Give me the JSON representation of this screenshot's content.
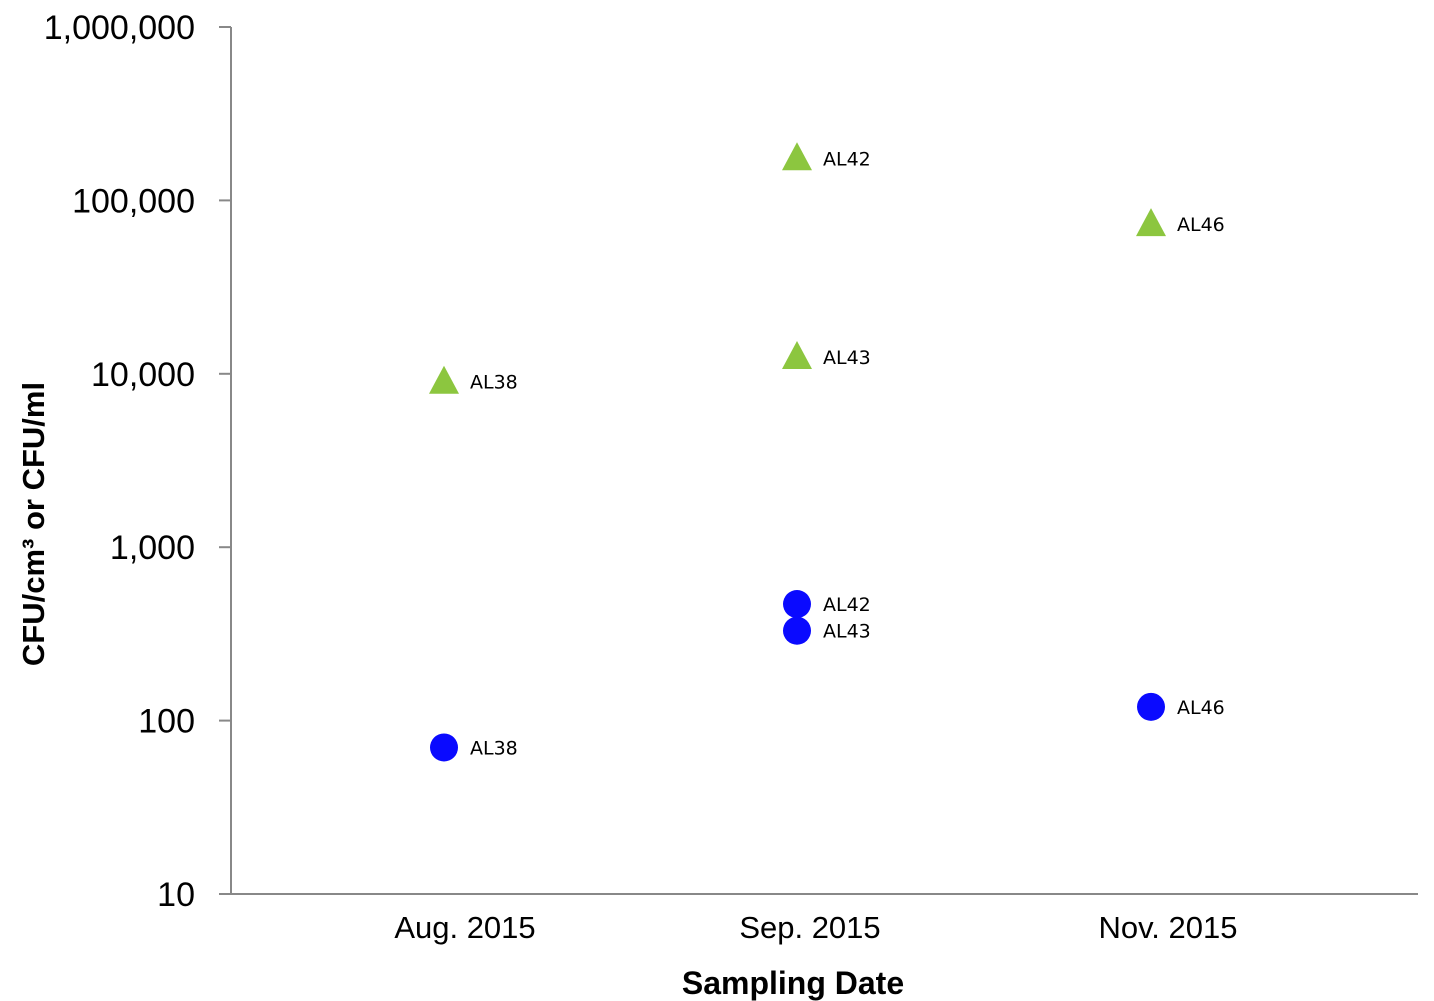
{
  "chart_data": {
    "type": "scatter",
    "xlabel": "Sampling Date",
    "ylabel": "CFU/cm³ or CFU/ml",
    "categories": [
      "Aug. 2015",
      "Sep. 2015",
      "Nov. 2015"
    ],
    "yscale": "log",
    "ylim": [
      10,
      1000000
    ],
    "yticks": [
      10,
      100,
      1000,
      10000,
      100000,
      1000000
    ],
    "ytick_labels": [
      "10",
      "100",
      "1,000",
      "10,000",
      "100,000",
      "1,000,000"
    ],
    "grid": false,
    "series": [
      {
        "marker": "triangle",
        "color": "#8cc63f",
        "points": [
          {
            "x": "Aug. 2015",
            "y": 9000,
            "label": "AL38"
          },
          {
            "x": "Sep. 2015",
            "y": 175000,
            "label": "AL42"
          },
          {
            "x": "Sep. 2015",
            "y": 12500,
            "label": "AL43"
          },
          {
            "x": "Nov. 2015",
            "y": 73000,
            "label": "AL46"
          }
        ]
      },
      {
        "marker": "circle",
        "color": "#0a0aff",
        "points": [
          {
            "x": "Aug. 2015",
            "y": 70,
            "label": "AL38"
          },
          {
            "x": "Sep. 2015",
            "y": 470,
            "label": "AL42"
          },
          {
            "x": "Sep. 2015",
            "y": 330,
            "label": "AL43"
          },
          {
            "x": "Nov. 2015",
            "y": 120,
            "label": "AL46"
          }
        ]
      }
    ]
  }
}
